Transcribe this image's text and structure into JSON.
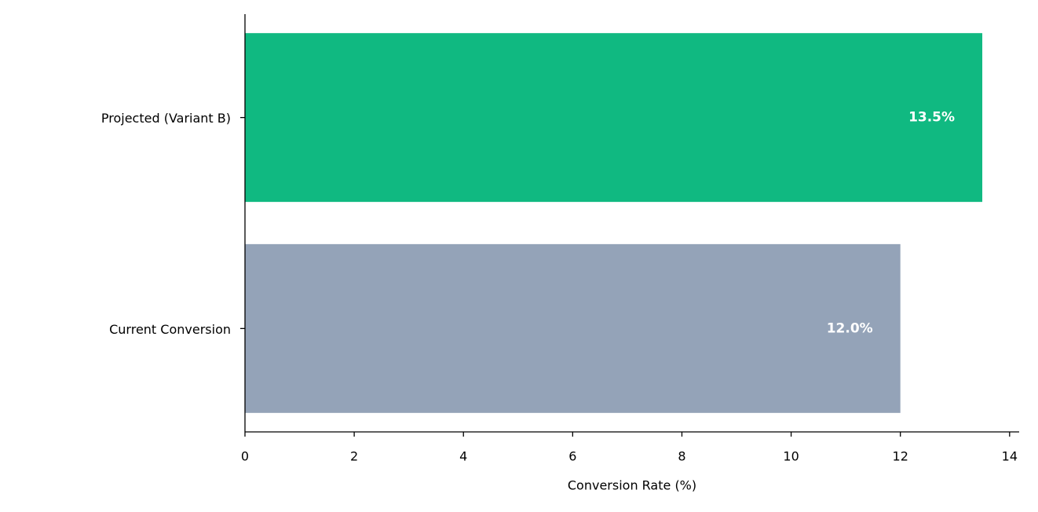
{
  "chart_data": {
    "type": "barh",
    "categories": [
      "Current Conversion",
      "Projected (Variant B)"
    ],
    "values": [
      12.0,
      13.5
    ],
    "value_labels": [
      "12.0%",
      "13.5%"
    ],
    "colors": [
      "#94a3b8",
      "#10b981"
    ],
    "xlabel": "Conversion Rate (%)",
    "xlim": [
      0,
      14.175
    ],
    "xticks": [
      0,
      2,
      4,
      6,
      8,
      10,
      12,
      14
    ]
  }
}
